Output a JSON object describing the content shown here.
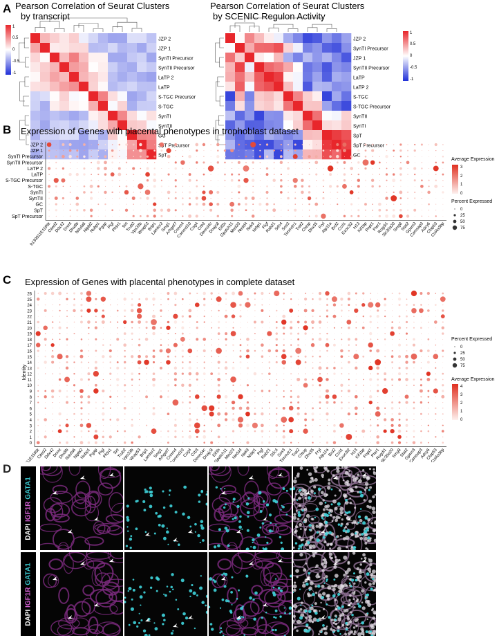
{
  "panels": {
    "a": {
      "letter": "A",
      "left": {
        "title_line1": "Pearson Correlation of Seurat Clusters",
        "title_line2": "by transcript",
        "rows": [
          "JZP 2",
          "JZP 1",
          "SynTI Precursor",
          "SynTII Precursor",
          "LaTP 2",
          "LaTP",
          "S-TGC Precursor",
          "S-TGC",
          "SynTI",
          "SynTII",
          "GC",
          "SpT Precursor",
          "SpT"
        ],
        "scale_ticks": [
          "1",
          "0.5",
          "0",
          "-0.5",
          "-1"
        ]
      },
      "right": {
        "title_line1": "Pearson Correlation of Seurat Clusters",
        "title_line2": "by SCENIC Regulon Activity",
        "rows": [
          "JZP 2",
          "SynTI Precursor",
          "JZP 1",
          "SynTII Precursor",
          "LaTP",
          "LaTP 2",
          "S-TGC",
          "S-TGC Precursor",
          "SynTII",
          "SynTI",
          "SpT",
          "SpT Precursor",
          "GC"
        ],
        "scale_ticks": [
          "1",
          "0.5",
          "0",
          "-0.5",
          "-1"
        ]
      }
    },
    "b": {
      "letter": "B",
      "title": "Expression of Genes with placental phenotypes in trophoblast dataset",
      "rows": [
        "JZP 2",
        "JZP 1",
        "SynTI Precursor",
        "SynTII Precursor",
        "LaTP 2",
        "LaTP",
        "S-TGC Precursor",
        "S-TGC",
        "SynTI",
        "SynTII",
        "GC",
        "SpT",
        "SpT Precursor"
      ],
      "legend": {
        "avg_title": "Average Expression",
        "avg_ticks": [
          "3",
          "2",
          "1",
          "0"
        ],
        "pct_title": "Percent Expressed",
        "pct_ticks": [
          "0",
          "25",
          "50",
          "75"
        ]
      }
    },
    "c": {
      "letter": "C",
      "title": "Expression of Genes with placental phenotypes in complete dataset",
      "ylabel": "Identity",
      "rows": [
        "26",
        "25",
        "24",
        "23",
        "22",
        "21",
        "20",
        "19",
        "18",
        "17",
        "16",
        "15",
        "14",
        "13",
        "12",
        "11",
        "10",
        "9",
        "8",
        "7",
        "6",
        "5",
        "4",
        "3",
        "2",
        "1",
        "0"
      ],
      "legend": {
        "pct_title": "Percent Expressed",
        "pct_ticks": [
          "0",
          "25",
          "50",
          "75"
        ],
        "avg_title": "Average Expression",
        "avg_ticks": [
          "4",
          "3",
          "2",
          "1",
          "0"
        ]
      }
    },
    "d": {
      "letter": "D",
      "channel_dapi": "DAPI",
      "channel_igf1r": "IGF1R",
      "channel_gata1": "GATA1"
    }
  },
  "genes": [
    "9130011E15Rik",
    "Cited2",
    "Ddx42",
    "Dnmt",
    "Dhx8b",
    "Ndufa6",
    "Nipbl2",
    "Nubp1",
    "Pgap",
    "Pigl",
    "Pfdn1",
    "Sirt",
    "Trub2",
    "Vps33b",
    "Wrap53",
    "Brip1",
    "Lamtor2",
    "Smg1",
    "Arhgef7",
    "Cnnm4",
    "Commd10",
    "Cog4",
    "Crb3",
    "Dennd4c",
    "Dnajc8",
    "Eif3h",
    "Gpatch11",
    "Med23",
    "Nedd4",
    "Nek9",
    "Nrbp1",
    "Pigf",
    "Rab21",
    "Sdc4",
    "Sos3",
    "Timmdc1",
    "Trat2",
    "Chtop",
    "Dhx35",
    "Fryl",
    "Atp11a",
    "Brd2",
    "Ccrl1",
    "Exoc3l2",
    "H13",
    "Kif1bp",
    "Pnpt1",
    "Pter1",
    "Rogdi1",
    "Slc30a20",
    "Smg8",
    "Stat2",
    "Gpsm3",
    "Camsap3",
    "Adcy6",
    "Cfap53",
    "Col4a3bp"
  ],
  "genes_c": [
    "9130011E15Rik",
    "Cited2",
    "Ddx42",
    "Dnmt",
    "Dhx8b",
    "Ndufa6",
    "Nipbl2",
    "Nubp1",
    "Pgap",
    "Pigl",
    "Pfdn1",
    "Sirt",
    "Trub2",
    "Vps33b",
    "Wrap53",
    "Brip1",
    "Lamtor2",
    "Smg1",
    "Arhgef7",
    "Cnnm4",
    "Commd10",
    "Cog4",
    "Crb3",
    "Dennd4c",
    "Dnajc8",
    "Eif3h",
    "Gpatch11",
    "Med23",
    "Nedd4",
    "Nek9",
    "Nrbp1",
    "Pigf",
    "Rab21",
    "Sdc4",
    "Sos3",
    "Timmdc1",
    "Trat2",
    "Chtop",
    "Dhx35",
    "Fryl",
    "Atp11a",
    "Brd2",
    "Ccrl1",
    "Exoc3l2",
    "H13",
    "Kif1bp",
    "Pnpt1",
    "Pter1",
    "Rogdi1",
    "Slc30a20",
    "Smg8",
    "Stat2",
    "Gpsm3",
    "Camsap3",
    "Adcy6",
    "Cfap53",
    "Col4a3bp"
  ],
  "colors": {
    "high": "#e8262b",
    "neutral": "#ffffff",
    "low": "#2030d8",
    "dot_high": "#e03020",
    "dot_low": "#fbe3e0",
    "igf1r": "#b848b8",
    "gata1": "#30c8d0"
  }
}
